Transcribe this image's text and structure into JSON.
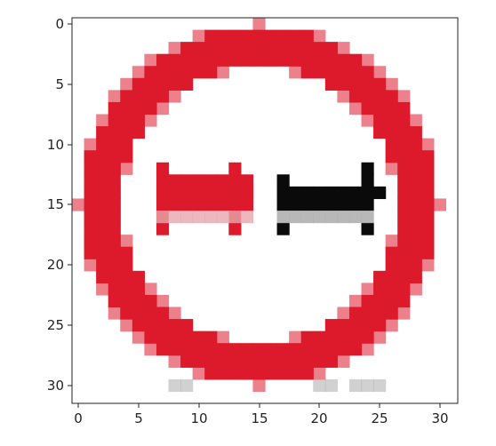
{
  "colors": {
    "sign_red": "#dd1a2b",
    "sign_black": "#0a0a0a",
    "background": "#ffffff",
    "axis": "#222222"
  },
  "image": {
    "content": "no-overtaking-traffic-sign",
    "pixel_grid": [
      32,
      32
    ]
  },
  "axes": {
    "x_ticks": [
      "0",
      "5",
      "10",
      "15",
      "20",
      "25",
      "30"
    ],
    "y_ticks": [
      "0",
      "5",
      "10",
      "15",
      "20",
      "25",
      "30"
    ]
  }
}
